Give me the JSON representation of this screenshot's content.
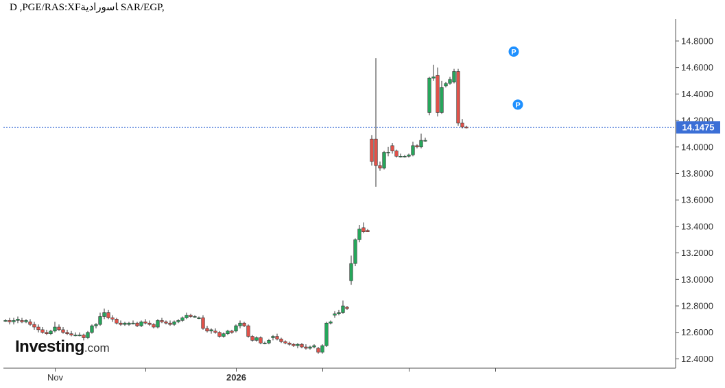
{
  "header": {
    "title": "D ,PGE/RAS:XFﺎﺳﻭﺭﺍﺩﻳﺔ SAR/EGP,"
  },
  "branding": {
    "brand": "Investing",
    "suffix": ".com"
  },
  "colors": {
    "up": "#26a65b",
    "down": "#e0524a",
    "current": "#3b6fd6",
    "marker": "#1e90ff",
    "axis": "#555555"
  },
  "chart_data": {
    "type": "candlestick",
    "title": "D ,PGE/RAS:XFﺎﺳﻭﺭﺍﺩﻳﺔ SAR/EGP,",
    "ylim": [
      12.33,
      14.965
    ],
    "y_ticks": [
      12.4,
      12.6,
      12.8,
      13.0,
      13.2,
      13.4,
      13.6,
      13.8,
      14.0,
      14.2,
      14.4,
      14.6,
      14.8
    ],
    "y_tick_labels": [
      "12.4000",
      "12.6000",
      "12.8000",
      "13.0000",
      "13.2000",
      "13.4000",
      "13.6000",
      "13.8000",
      "14.0000",
      "14.2000",
      "14.4000",
      "14.6000",
      "14.8000"
    ],
    "x_ticks": [
      {
        "index": 12,
        "label": "Nov",
        "bold": false
      },
      {
        "index": 34,
        "label": "",
        "bold": false
      },
      {
        "index": 56,
        "label": "2026",
        "bold": true
      },
      {
        "index": 77,
        "label": "",
        "bold": false
      },
      {
        "index": 98,
        "label": "",
        "bold": false
      },
      {
        "index": 119,
        "label": "",
        "bold": false
      }
    ],
    "current_price": 14.1475,
    "current_label": "14.1475",
    "markers": [
      {
        "index": 123,
        "price": 14.72,
        "label": "P"
      },
      {
        "index": 124,
        "price": 14.32,
        "label": "P"
      }
    ],
    "candles": [
      [
        12.69,
        12.7,
        12.68,
        12.69
      ],
      [
        12.69,
        12.71,
        12.66,
        12.68
      ],
      [
        12.68,
        12.71,
        12.66,
        12.69
      ],
      [
        12.69,
        12.72,
        12.67,
        12.7
      ],
      [
        12.69,
        12.71,
        12.67,
        12.68
      ],
      [
        12.68,
        12.7,
        12.67,
        12.69
      ],
      [
        12.68,
        12.7,
        12.65,
        12.66
      ],
      [
        12.66,
        12.68,
        12.62,
        12.64
      ],
      [
        12.64,
        12.66,
        12.6,
        12.62
      ],
      [
        12.62,
        12.64,
        12.59,
        12.6
      ],
      [
        12.6,
        12.62,
        12.58,
        12.59
      ],
      [
        12.59,
        12.62,
        12.58,
        12.61
      ],
      [
        12.61,
        12.68,
        12.6,
        12.64
      ],
      [
        12.64,
        12.66,
        12.61,
        12.62
      ],
      [
        12.62,
        12.64,
        12.59,
        12.6
      ],
      [
        12.6,
        12.62,
        12.58,
        12.59
      ],
      [
        12.59,
        12.61,
        12.57,
        12.58
      ],
      [
        12.58,
        12.6,
        12.57,
        12.58
      ],
      [
        12.58,
        12.6,
        12.57,
        12.58
      ],
      [
        12.58,
        12.59,
        12.54,
        12.56
      ],
      [
        12.56,
        12.61,
        12.55,
        12.6
      ],
      [
        12.6,
        12.66,
        12.59,
        12.65
      ],
      [
        12.65,
        12.67,
        12.63,
        12.66
      ],
      [
        12.66,
        12.75,
        12.65,
        12.72
      ],
      [
        12.72,
        12.78,
        12.7,
        12.75
      ],
      [
        12.75,
        12.77,
        12.7,
        12.71
      ],
      [
        12.71,
        12.73,
        12.68,
        12.7
      ],
      [
        12.7,
        12.71,
        12.66,
        12.67
      ],
      [
        12.67,
        12.69,
        12.65,
        12.66
      ],
      [
        12.66,
        12.68,
        12.65,
        12.67
      ],
      [
        12.66,
        12.68,
        12.65,
        12.67
      ],
      [
        12.67,
        12.69,
        12.66,
        12.67
      ],
      [
        12.67,
        12.68,
        12.64,
        12.65
      ],
      [
        12.65,
        12.69,
        12.64,
        12.68
      ],
      [
        12.68,
        12.7,
        12.66,
        12.67
      ],
      [
        12.67,
        12.69,
        12.65,
        12.66
      ],
      [
        12.66,
        12.67,
        12.63,
        12.64
      ],
      [
        12.64,
        12.7,
        12.63,
        12.69
      ],
      [
        12.69,
        12.71,
        12.67,
        12.68
      ],
      [
        12.68,
        12.69,
        12.66,
        12.67
      ],
      [
        12.67,
        12.69,
        12.65,
        12.66
      ],
      [
        12.66,
        12.69,
        12.65,
        12.68
      ],
      [
        12.68,
        12.7,
        12.67,
        12.69
      ],
      [
        12.69,
        12.72,
        12.68,
        12.71
      ],
      [
        12.71,
        12.75,
        12.7,
        12.73
      ],
      [
        12.73,
        12.74,
        12.71,
        12.72
      ],
      [
        12.72,
        12.73,
        12.71,
        12.72
      ],
      [
        12.71,
        12.72,
        12.7,
        12.71
      ],
      [
        12.71,
        12.73,
        12.62,
        12.63
      ],
      [
        12.63,
        12.65,
        12.6,
        12.61
      ],
      [
        12.61,
        12.63,
        12.59,
        12.62
      ],
      [
        12.61,
        12.63,
        12.59,
        12.6
      ],
      [
        12.6,
        12.61,
        12.56,
        12.57
      ],
      [
        12.57,
        12.6,
        12.56,
        12.59
      ],
      [
        12.59,
        12.62,
        12.58,
        12.61
      ],
      [
        12.61,
        12.62,
        12.59,
        12.6
      ],
      [
        12.61,
        12.66,
        12.6,
        12.65
      ],
      [
        12.65,
        12.69,
        12.63,
        12.67
      ],
      [
        12.67,
        12.68,
        12.64,
        12.65
      ],
      [
        12.65,
        12.66,
        12.56,
        12.57
      ],
      [
        12.57,
        12.58,
        12.53,
        12.54
      ],
      [
        12.54,
        12.57,
        12.53,
        12.56
      ],
      [
        12.56,
        12.57,
        12.51,
        12.52
      ],
      [
        12.52,
        12.53,
        12.51,
        12.52
      ],
      [
        12.52,
        12.55,
        12.51,
        12.54
      ],
      [
        12.56,
        12.58,
        12.54,
        12.57
      ],
      [
        12.57,
        12.59,
        12.54,
        12.55
      ],
      [
        12.55,
        12.56,
        12.52,
        12.53
      ],
      [
        12.53,
        12.54,
        12.51,
        12.52
      ],
      [
        12.52,
        12.53,
        12.5,
        12.51
      ],
      [
        12.51,
        12.52,
        12.49,
        12.5
      ],
      [
        12.5,
        12.52,
        12.48,
        12.51
      ],
      [
        12.51,
        12.52,
        12.48,
        12.49
      ],
      [
        12.49,
        12.51,
        12.47,
        12.48
      ],
      [
        12.48,
        12.5,
        12.47,
        12.49
      ],
      [
        12.49,
        12.51,
        12.48,
        12.5
      ],
      [
        12.48,
        12.49,
        12.44,
        12.45
      ],
      [
        12.45,
        12.51,
        12.44,
        12.5
      ],
      [
        12.5,
        12.68,
        12.49,
        12.67
      ],
      [
        12.67,
        12.69,
        12.66,
        12.68
      ],
      [
        12.73,
        12.76,
        12.71,
        12.74
      ],
      [
        12.74,
        12.77,
        12.73,
        12.75
      ],
      [
        12.75,
        12.84,
        12.74,
        12.8
      ],
      [
        12.79,
        12.8,
        12.77,
        12.78
      ],
      [
        12.99,
        13.18,
        12.96,
        13.12
      ],
      [
        13.12,
        13.31,
        13.1,
        13.3
      ],
      [
        13.3,
        13.41,
        13.28,
        13.38
      ],
      [
        13.39,
        13.43,
        13.35,
        13.36
      ],
      [
        13.37,
        13.38,
        13.36,
        13.36
      ],
      [
        14.06,
        14.09,
        13.86,
        13.89
      ],
      [
        14.06,
        14.67,
        13.7,
        13.86
      ],
      [
        13.86,
        13.89,
        13.82,
        13.84
      ],
      [
        13.84,
        13.97,
        13.83,
        13.96
      ],
      [
        13.96,
        14.0,
        13.93,
        13.96
      ],
      [
        14.01,
        14.03,
        13.95,
        13.97
      ],
      [
        13.97,
        13.98,
        13.92,
        13.93
      ],
      [
        13.93,
        13.95,
        13.92,
        13.93
      ],
      [
        13.93,
        13.94,
        13.92,
        13.93
      ],
      [
        13.93,
        13.95,
        13.92,
        13.94
      ],
      [
        13.94,
        14.04,
        13.93,
        14.01
      ],
      [
        14.01,
        14.02,
        13.99,
        14.0
      ],
      [
        14.0,
        14.1,
        13.99,
        14.05
      ],
      [
        14.05,
        14.07,
        14.04,
        14.05
      ],
      [
        14.26,
        14.53,
        14.24,
        14.52
      ],
      [
        14.52,
        14.62,
        14.5,
        14.53
      ],
      [
        14.54,
        14.6,
        14.23,
        14.26
      ],
      [
        14.26,
        14.5,
        14.25,
        14.45
      ],
      [
        14.46,
        14.49,
        14.45,
        14.48
      ],
      [
        14.48,
        14.53,
        14.47,
        14.51
      ],
      [
        14.49,
        14.59,
        14.48,
        14.57
      ],
      [
        14.57,
        14.59,
        14.16,
        14.18
      ],
      [
        14.18,
        14.21,
        14.14,
        14.15
      ],
      [
        14.15,
        14.16,
        14.14,
        14.1475
      ]
    ]
  }
}
